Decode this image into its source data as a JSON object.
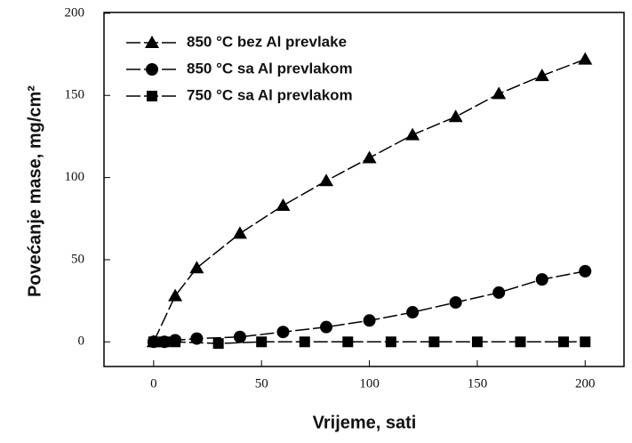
{
  "chart_data": {
    "type": "line",
    "xlabel": "Vrijeme, sati",
    "ylabel": "Povećanje mase, mg/cm²",
    "xlim": [
      -23,
      218
    ],
    "ylim": [
      -15,
      200.5
    ],
    "xticks": [
      0,
      50,
      100,
      150,
      200
    ],
    "yticks": [
      0,
      50,
      100,
      150,
      200
    ],
    "legend": "upper left",
    "series": [
      {
        "name": "850 °C bez Al prevlake",
        "color": "#000000",
        "marker": "triangle",
        "x": [
          0,
          10,
          20,
          40,
          60,
          80,
          100,
          120,
          140,
          160,
          180,
          200
        ],
        "values": [
          0,
          28,
          45,
          66,
          83,
          98,
          112,
          126,
          137,
          151,
          162,
          172
        ]
      },
      {
        "name": "850 °C sa Al prevlakom",
        "color": "#000000",
        "marker": "circle",
        "x": [
          0,
          5,
          10,
          20,
          40,
          60,
          80,
          100,
          120,
          140,
          160,
          180,
          200
        ],
        "values": [
          0,
          0,
          1,
          2,
          3,
          6,
          9,
          13,
          18,
          24,
          30,
          38,
          43
        ]
      },
      {
        "name": "750 °C sa Al prevlakom",
        "color": "#000000",
        "marker": "square",
        "x": [
          0,
          5,
          10,
          30,
          50,
          70,
          90,
          110,
          130,
          150,
          170,
          190,
          200
        ],
        "values": [
          0,
          0,
          0,
          -1,
          0,
          0,
          0,
          0,
          0,
          0,
          0,
          0,
          0
        ]
      }
    ]
  }
}
